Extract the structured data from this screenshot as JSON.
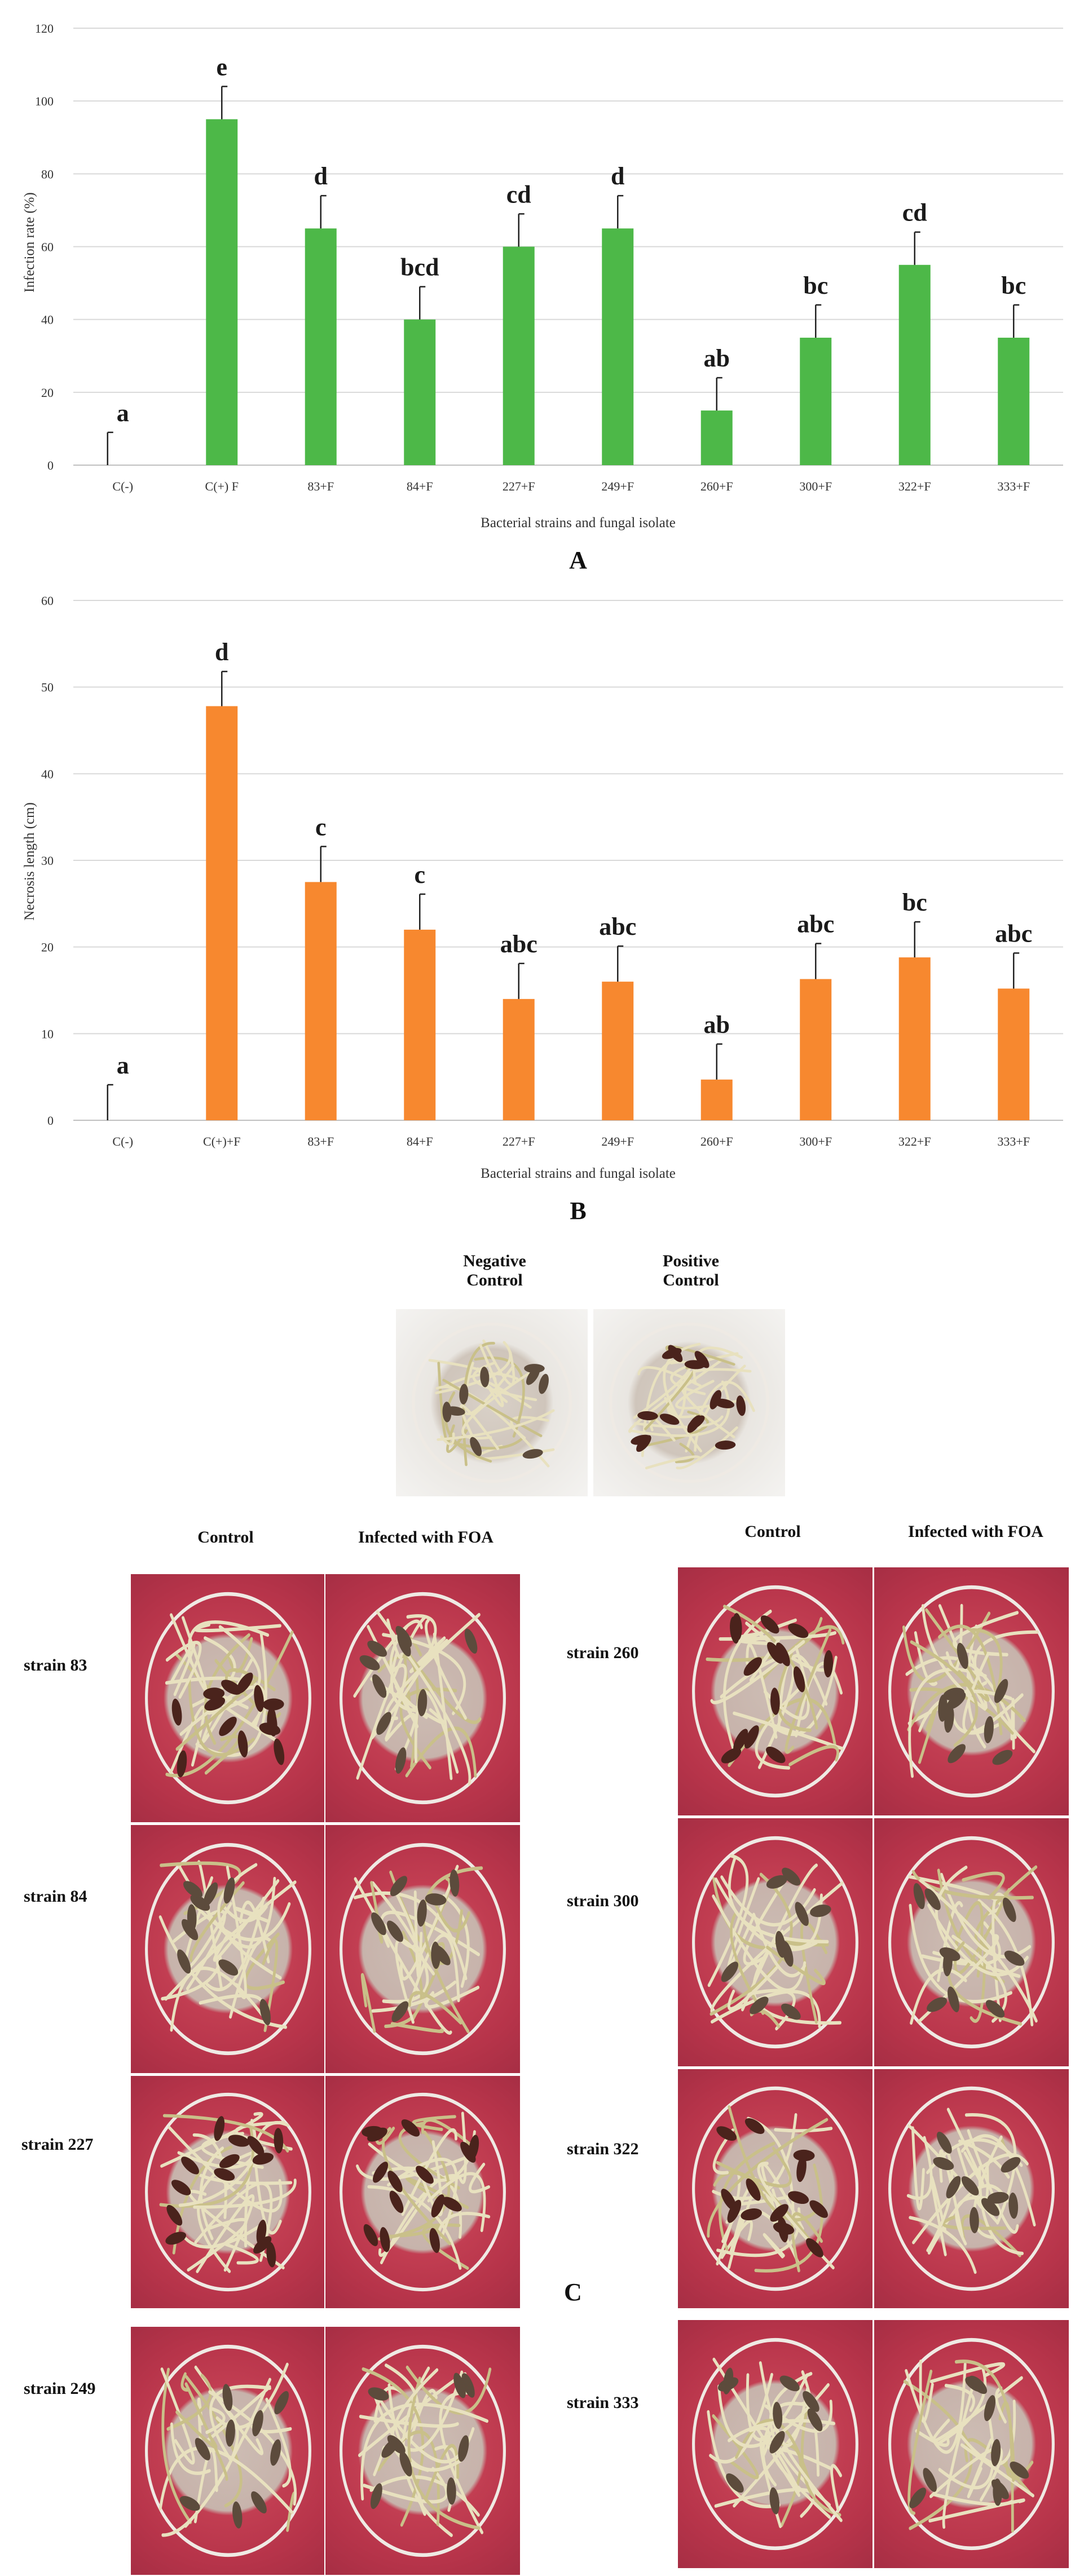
{
  "chart_data": [
    {
      "id": "A",
      "type": "bar",
      "ylabel": "Infection rate (%)",
      "xlabel": "Bacterial strains and fungal isolate",
      "panel_label": "A",
      "ylim": [
        0,
        120
      ],
      "yticks": [
        0,
        20,
        40,
        60,
        80,
        100,
        120
      ],
      "grid": true,
      "color": "#4db848",
      "categories": [
        "C(-)",
        "C(+) F",
        "83+F",
        "84+F",
        "227+F",
        "249+F",
        "260+F",
        "300+F",
        "322+F",
        "333+F"
      ],
      "values": [
        0,
        95,
        65,
        40,
        60,
        65,
        15,
        35,
        55,
        35
      ],
      "errors": [
        9,
        9,
        9,
        9,
        9,
        9,
        9,
        9,
        9,
        9
      ],
      "letters": [
        "a",
        "e",
        "d",
        "bcd",
        "cd",
        "d",
        "ab",
        "bc",
        "cd",
        "bc"
      ]
    },
    {
      "id": "B",
      "type": "bar",
      "ylabel": "Necrosis length (cm)",
      "xlabel": "Bacterial strains and fungal isolate",
      "panel_label": "B",
      "ylim": [
        0,
        60
      ],
      "yticks": [
        0,
        10,
        20,
        30,
        40,
        50,
        60
      ],
      "grid": true,
      "color": "#f7882f",
      "categories": [
        "C(-)",
        "C(+)+F",
        "83+F",
        "84+F",
        "227+F",
        "249+F",
        "260+F",
        "300+F",
        "322+F",
        "333+F"
      ],
      "values": [
        0,
        47.8,
        27.5,
        22,
        14,
        16,
        4.7,
        16.3,
        18.8,
        15.2
      ],
      "errors": [
        4.1,
        4,
        4.1,
        4.1,
        4.1,
        4.1,
        4.1,
        4.1,
        4.1,
        4.1
      ],
      "letters": [
        "a",
        "d",
        "c",
        "c",
        "abc",
        "abc",
        "ab",
        "abc",
        "bc",
        "abc"
      ]
    }
  ],
  "photos": {
    "top": {
      "negative": "Negative\nControl",
      "positive": "Positive\nControl"
    },
    "headers": {
      "control": "Control",
      "infected": "Infected with FOA"
    },
    "left_rows": [
      "strain 83",
      "strain 84",
      "strain 227",
      "strain 249"
    ],
    "right_rows": [
      "strain 260",
      "strain 300",
      "strain 322",
      "strain 333"
    ],
    "panel_label": "C"
  },
  "colors": {
    "grid": "#d9d9d9",
    "axis": "#bfbfbf",
    "error": "#222222"
  }
}
